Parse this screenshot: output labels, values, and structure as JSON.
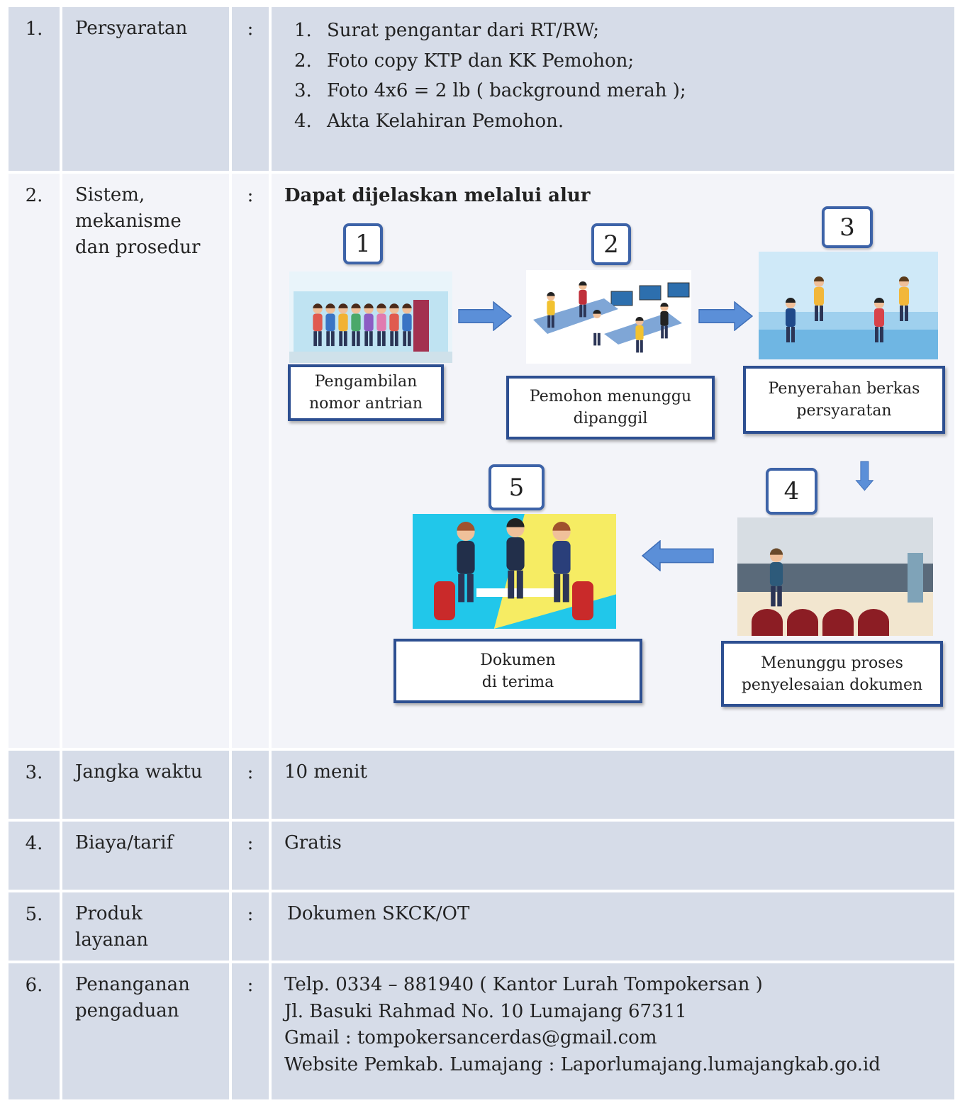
{
  "table": {
    "rows": [
      {
        "number": "1.",
        "label_lines": [
          "Persyaratan"
        ],
        "separator": ":",
        "items": [
          {
            "number": "1.",
            "text": "Surat pengantar dari RT/RW;"
          },
          {
            "number": "2.",
            "text": "Foto copy KTP dan KK Pemohon;"
          },
          {
            "number": "3.",
            "text": "Foto 4x6 = 2 lb ( background merah );"
          },
          {
            "number": "4.",
            "text": "Akta Kelahiran Pemohon."
          }
        ]
      },
      {
        "number": "2.",
        "label_lines": [
          "Sistem,",
          "mekanisme",
          "dan prosedur"
        ],
        "separator": ":",
        "heading": "Dapat dijelaskan melalui alur",
        "steps": [
          {
            "number": "1",
            "caption_lines": [
              "Pengambilan",
              "nomor antrian"
            ]
          },
          {
            "number": "2",
            "caption_lines": [
              "Pemohon menunggu",
              "dipanggil"
            ]
          },
          {
            "number": "3",
            "caption_lines": [
              "Penyerahan berkas",
              "persyaratan"
            ]
          },
          {
            "number": "4",
            "caption_lines": [
              "Menunggu proses",
              "penyelesaian dokumen"
            ]
          },
          {
            "number": "5",
            "caption_lines": [
              "Dokumen",
              "di terima"
            ]
          }
        ]
      },
      {
        "number": "3.",
        "label_lines": [
          "Jangka waktu"
        ],
        "separator": ":",
        "lines": [
          "10 menit"
        ]
      },
      {
        "number": "4.",
        "label_lines": [
          "Biaya/tarif"
        ],
        "separator": ":",
        "lines": [
          "Gratis"
        ]
      },
      {
        "number": "5.",
        "label_lines": [
          "Produk",
          "layanan"
        ],
        "separator": ":",
        "lines": [
          "Dokumen SKCK/OT"
        ]
      },
      {
        "number": "6.",
        "label_lines": [
          "Penanganan",
          "pengaduan"
        ],
        "separator": ":",
        "lines": [
          "Telp. 0334 – 881940 ( Kantor Lurah Tompokersan )",
          "Jl. Basuki Rahmad No. 10 Lumajang 67311",
          "Gmail : tompokersancerdas@gmail.com",
          "Website Pemkab. Lumajang : Laporlumajang.lumajangkab.go.id"
        ]
      }
    ]
  }
}
